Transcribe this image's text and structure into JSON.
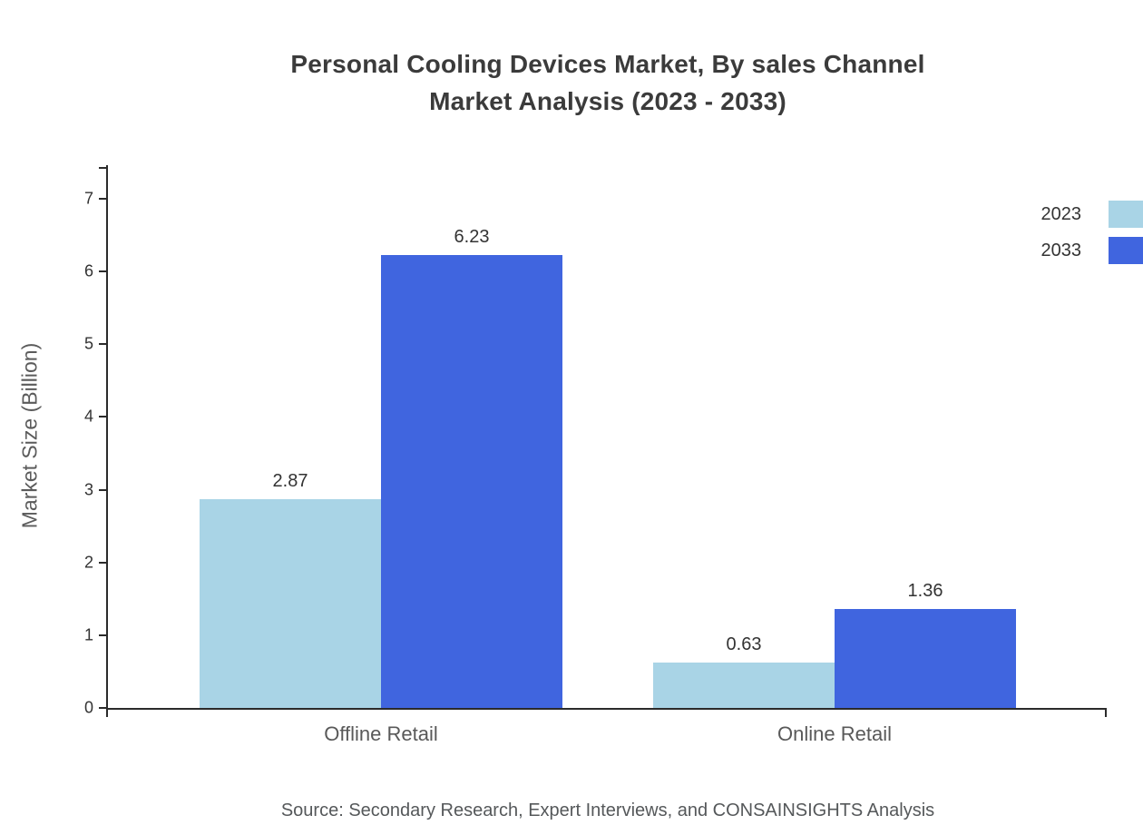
{
  "chart_data": {
    "type": "bar",
    "title_line1": "Personal Cooling Devices Market, By sales Channel",
    "title_line2": "Market Analysis (2023 - 2033)",
    "ylabel": "Market Size (Billion)",
    "xlabel": "",
    "categories": [
      "Offline Retail",
      "Online Retail"
    ],
    "series": [
      {
        "name": "2023",
        "color": "#A9D4E6",
        "values": [
          2.87,
          0.63
        ]
      },
      {
        "name": "2033",
        "color": "#4065DF",
        "values": [
          6.23,
          1.36
        ]
      }
    ],
    "ylim": [
      0,
      7
    ],
    "yticks": [
      0,
      1,
      2,
      3,
      4,
      5,
      6,
      7
    ],
    "grid": false,
    "legend_position": "top-right",
    "source": "Source: Secondary Research, Expert Interviews, and CONSAINSIGHTS Analysis"
  }
}
